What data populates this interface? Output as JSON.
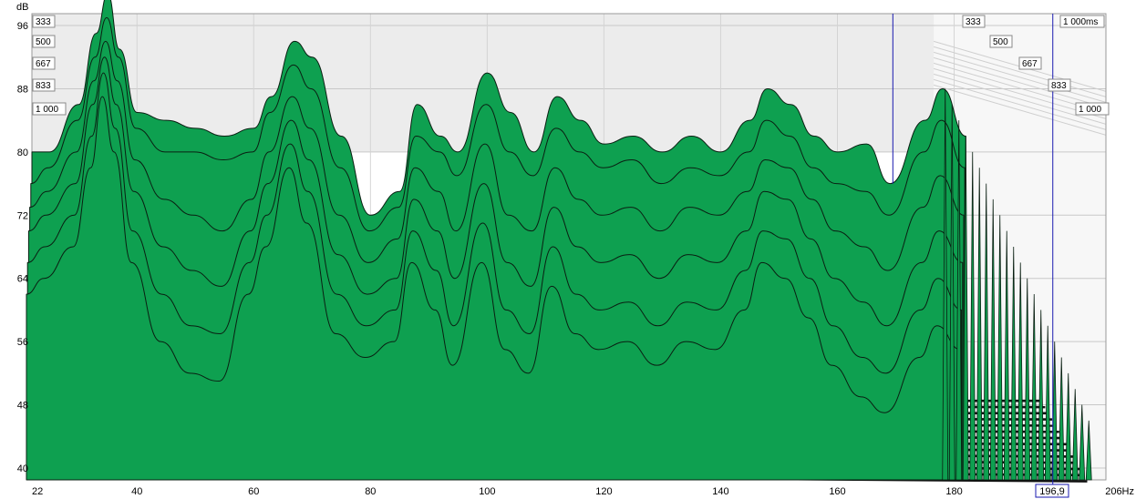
{
  "chart_data": {
    "type": "area",
    "chart_kind": "waterfall",
    "ylabel": "dB",
    "y_ticks": [
      "96",
      "88",
      "80",
      "72",
      "64",
      "56",
      "48",
      "40"
    ],
    "y_tick_values": [
      96,
      88,
      80,
      72,
      64,
      56,
      48,
      40
    ],
    "ylim": [
      38.5,
      97.5
    ],
    "x_ticks": [
      "22",
      "40",
      "60",
      "80",
      "100",
      "120",
      "140",
      "160",
      "180",
      "206Hz"
    ],
    "x_tick_values": [
      22,
      40,
      60,
      80,
      100,
      120,
      140,
      160,
      180,
      206
    ],
    "xlim": [
      22,
      206
    ],
    "x_scale": "linear",
    "time_labels_left": [
      "333",
      "500",
      "667",
      "833",
      "1 000"
    ],
    "time_labels_right": [
      "333",
      "500",
      "667",
      "833",
      "1 000"
    ],
    "time_label_end": "1 000ms",
    "cursor_readout": "196,9",
    "cursor_freq": 196.9,
    "marker_freq": 169.5,
    "fill_color": "#0ea050",
    "line_color": "#0a1f12",
    "cursor_color": "#1a1ab0",
    "grid": true,
    "series": [
      {
        "x": [
          22,
          25,
          30,
          33,
          35,
          37,
          40,
          45,
          50,
          55,
          60,
          63,
          67,
          70,
          75,
          80,
          85,
          88,
          92,
          95,
          100,
          104,
          108,
          112,
          116,
          120,
          125,
          130,
          135,
          140,
          145,
          148,
          152,
          156,
          160,
          165,
          169,
          175,
          178,
          182
        ],
        "values": [
          80,
          80,
          86,
          95,
          100,
          93,
          85,
          84,
          83,
          82,
          83,
          87,
          94,
          92,
          82,
          72,
          75,
          86,
          82,
          80,
          90,
          85,
          80,
          87,
          84,
          81,
          82,
          80,
          82,
          80,
          84,
          88,
          86,
          82,
          80,
          81,
          76,
          84,
          88,
          82
        ]
      },
      {
        "x": [
          22,
          25,
          30,
          33,
          35,
          37,
          40,
          45,
          50,
          55,
          60,
          63,
          67,
          70,
          75,
          80,
          85,
          88,
          92,
          95,
          100,
          104,
          108,
          112,
          116,
          120,
          125,
          130,
          135,
          140,
          145,
          148,
          152,
          156,
          160,
          165,
          169,
          175,
          178,
          182
        ],
        "values": [
          76,
          78,
          84,
          92,
          97,
          92,
          83,
          80,
          80,
          79,
          80,
          85,
          91,
          88,
          78,
          70,
          73,
          82,
          80,
          77,
          86,
          80,
          77,
          83,
          80,
          78,
          79,
          76,
          78,
          77,
          80,
          84,
          82,
          78,
          76,
          75,
          72,
          80,
          84,
          78
        ]
      },
      {
        "x": [
          22,
          25,
          30,
          33,
          35,
          37,
          40,
          45,
          50,
          55,
          60,
          63,
          67,
          70,
          75,
          80,
          85,
          88,
          92,
          95,
          100,
          104,
          108,
          112,
          116,
          120,
          125,
          130,
          135,
          140,
          145,
          148,
          152,
          156,
          160,
          165,
          169,
          175,
          178,
          182
        ],
        "values": [
          73,
          75,
          80,
          89,
          94,
          89,
          79,
          74,
          72,
          70,
          74,
          80,
          87,
          83,
          72,
          66,
          69,
          78,
          75,
          70,
          81,
          72,
          70,
          78,
          74,
          72,
          73,
          70,
          73,
          72,
          75,
          79,
          78,
          74,
          70,
          68,
          65,
          73,
          77,
          72
        ]
      },
      {
        "x": [
          22,
          25,
          30,
          33,
          35,
          37,
          40,
          45,
          50,
          55,
          60,
          63,
          67,
          70,
          75,
          80,
          85,
          88,
          92,
          95,
          100,
          104,
          108,
          112,
          116,
          120,
          125,
          130,
          135,
          140,
          145,
          148,
          152,
          156,
          160,
          165,
          169,
          175,
          178,
          182
        ],
        "values": [
          70,
          72,
          76,
          86,
          92,
          86,
          75,
          68,
          65,
          63,
          70,
          76,
          84,
          79,
          67,
          62,
          64,
          74,
          70,
          64,
          76,
          66,
          63,
          73,
          68,
          66,
          67,
          64,
          67,
          66,
          70,
          75,
          74,
          69,
          64,
          61,
          58,
          66,
          70,
          66
        ]
      },
      {
        "x": [
          22,
          25,
          30,
          33,
          35,
          37,
          40,
          45,
          50,
          55,
          60,
          63,
          67,
          70,
          75,
          80,
          85,
          88,
          92,
          95,
          100,
          104,
          108,
          112,
          116,
          120,
          125,
          130,
          135,
          140,
          145,
          148,
          152,
          156,
          160,
          165,
          169,
          175,
          178,
          182
        ],
        "values": [
          66,
          68,
          72,
          82,
          90,
          83,
          70,
          62,
          58,
          57,
          66,
          72,
          81,
          75,
          62,
          58,
          60,
          70,
          65,
          58,
          71,
          60,
          57,
          68,
          62,
          60,
          61,
          58,
          61,
          60,
          65,
          70,
          69,
          64,
          58,
          54,
          52,
          60,
          64,
          60
        ]
      },
      {
        "x": [
          22,
          25,
          30,
          33,
          35,
          37,
          40,
          45,
          50,
          55,
          60,
          63,
          67,
          70,
          75,
          80,
          85,
          88,
          92,
          95,
          100,
          104,
          108,
          112,
          116,
          120,
          125,
          130,
          135,
          140,
          145,
          148,
          152,
          156,
          160,
          165,
          169,
          175,
          178,
          182
        ],
        "values": [
          62,
          64,
          68,
          78,
          87,
          80,
          66,
          56,
          52,
          51,
          62,
          68,
          78,
          71,
          57,
          54,
          56,
          66,
          60,
          53,
          66,
          55,
          52,
          63,
          57,
          55,
          56,
          53,
          56,
          55,
          60,
          66,
          64,
          59,
          53,
          49,
          47,
          54,
          58,
          55
        ]
      }
    ]
  }
}
